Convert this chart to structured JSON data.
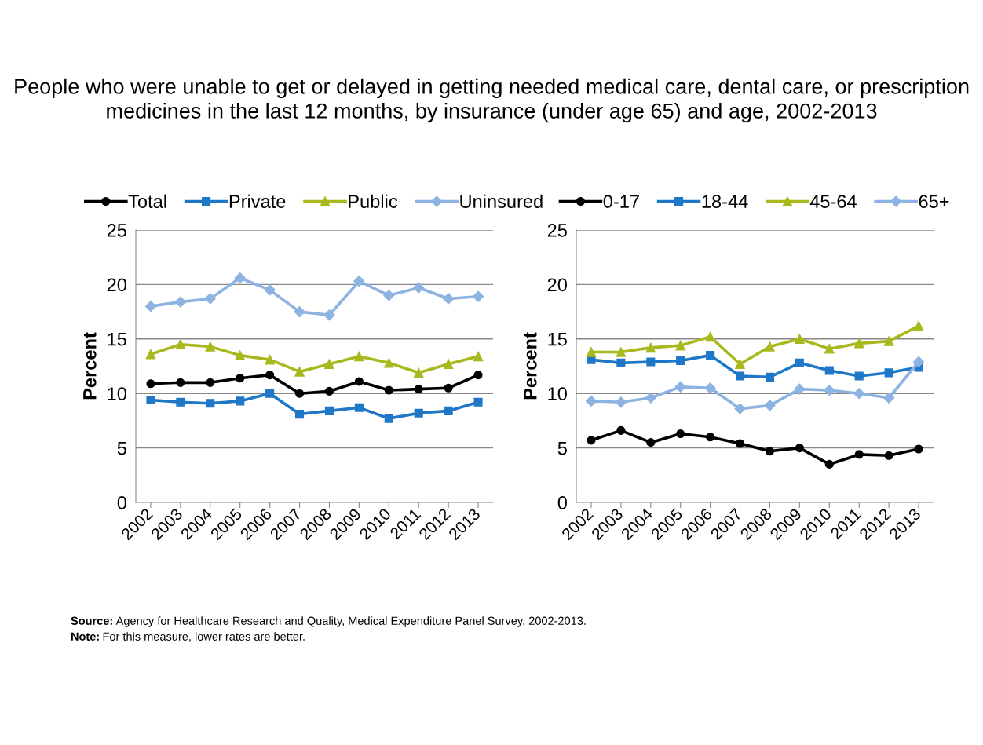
{
  "chart_data": [
    {
      "type": "line",
      "title": "People who were unable to get or delayed in getting needed medical care, dental care, or prescription medicines in the last 12 months, by insurance (under age 65) and age, 2002-2013",
      "ylabel": "Percent",
      "categories": [
        "2002",
        "2003",
        "2004",
        "2005",
        "2006",
        "2007",
        "2008",
        "2009",
        "2010",
        "2011",
        "2012",
        "2013"
      ],
      "ylim": [
        0,
        25
      ],
      "yticks": [
        0,
        5,
        10,
        15,
        20,
        25
      ],
      "grid": "y",
      "legend": "top",
      "series": [
        {
          "name": "Total",
          "color": "#000000",
          "marker": "circle",
          "values": [
            10.9,
            11.0,
            11.0,
            11.4,
            11.7,
            10.0,
            10.2,
            11.1,
            10.3,
            10.4,
            10.5,
            11.7
          ]
        },
        {
          "name": "Private",
          "color": "#1f77c8",
          "marker": "square",
          "values": [
            9.4,
            9.2,
            9.1,
            9.3,
            10.0,
            8.1,
            8.4,
            8.7,
            7.7,
            8.2,
            8.4,
            9.2
          ]
        },
        {
          "name": "Public",
          "color": "#a8b91e",
          "marker": "triangle",
          "values": [
            13.6,
            14.5,
            14.3,
            13.5,
            13.1,
            12.0,
            12.7,
            13.4,
            12.8,
            11.9,
            12.7,
            13.4
          ]
        },
        {
          "name": "Uninsured",
          "color": "#8db3e2",
          "marker": "diamond",
          "values": [
            18.0,
            18.4,
            18.7,
            20.6,
            19.5,
            17.5,
            17.2,
            20.3,
            19.0,
            19.7,
            18.7,
            18.9
          ]
        }
      ],
      "annotations": [
        "Source: Agency for Healthcare Research and Quality, Medical Expenditure Panel Survey, 2002-2013.",
        "Note: For this measure, lower rates are better."
      ]
    },
    {
      "type": "line",
      "ylabel": "Percent",
      "categories": [
        "2002",
        "2003",
        "2004",
        "2005",
        "2006",
        "2007",
        "2008",
        "2009",
        "2010",
        "2011",
        "2012",
        "2013"
      ],
      "ylim": [
        0,
        25
      ],
      "yticks": [
        0,
        5,
        10,
        15,
        20,
        25
      ],
      "grid": "y",
      "legend": "top",
      "series": [
        {
          "name": "0-17",
          "color": "#000000",
          "marker": "circle",
          "values": [
            5.7,
            6.6,
            5.5,
            6.3,
            6.0,
            5.4,
            4.7,
            5.0,
            3.5,
            4.4,
            4.3,
            4.9
          ]
        },
        {
          "name": "18-44",
          "color": "#1f77c8",
          "marker": "square",
          "values": [
            13.1,
            12.8,
            12.9,
            13.0,
            13.5,
            11.6,
            11.5,
            12.8,
            12.1,
            11.6,
            11.9,
            12.4
          ]
        },
        {
          "name": "45-64",
          "color": "#a8b91e",
          "marker": "triangle",
          "values": [
            13.8,
            13.8,
            14.2,
            14.4,
            15.2,
            12.7,
            14.3,
            15.0,
            14.1,
            14.6,
            14.8,
            16.2
          ]
        },
        {
          "name": "65+",
          "color": "#8db3e2",
          "marker": "diamond",
          "values": [
            9.3,
            9.2,
            9.6,
            10.6,
            10.5,
            8.6,
            8.9,
            10.4,
            10.3,
            10.0,
            9.6,
            12.9
          ]
        }
      ]
    }
  ]
}
